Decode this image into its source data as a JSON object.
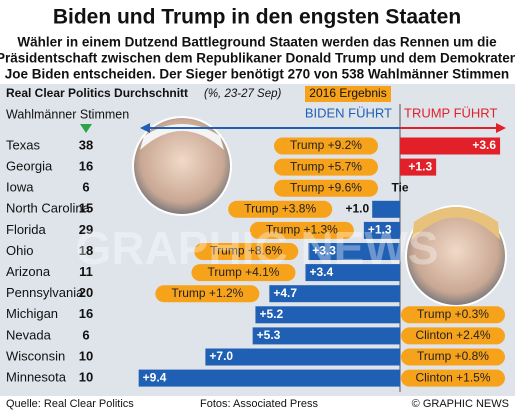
{
  "title": "Biden und Trump in den engsten Staaten",
  "subtitle": [
    "Wähler in einem Dutzend Battleground Staaten werden das Rennen um die",
    "Präsidentschaft zwischen dem Republikaner Donald Trump und dem Demokraten",
    "Joe Biden entscheiden. Der Sieger benötigt 270 von 538 Wahlmänner Stimmen"
  ],
  "poll_label": "Real Clear Politics Durchschnitt",
  "poll_note": "(%, 23-27 Sep)",
  "result_header": "2016 Ergebnis",
  "votes_header": "Wahlmänner Stimmen",
  "watermark": "GRAPHIC NEWS",
  "footer": {
    "source": "Quelle: Real Clear Politics",
    "photos": "Fotos: Associated Press",
    "copyright": "© GRAPHIC NEWS"
  },
  "chart_data": {
    "type": "diverging_bar",
    "categories": [
      "Texas",
      "Georgia",
      "Iowa",
      "North Carolina",
      "Florida",
      "Ohio",
      "Arizona",
      "Pennsylvania",
      "Michigan",
      "Nevada",
      "Wisconsin",
      "Minnesota"
    ],
    "electoral_votes": [
      38,
      16,
      6,
      15,
      29,
      18,
      11,
      20,
      16,
      6,
      10,
      10
    ],
    "series": [
      {
        "name": "BIDEN FÜHRT",
        "color": "#1f5fb4",
        "side": "left",
        "values": [
          null,
          null,
          0,
          1.0,
          1.3,
          3.3,
          3.4,
          4.7,
          5.2,
          5.3,
          7.0,
          9.4
        ],
        "value_labels": [
          null,
          null,
          "Tie",
          "+1.0",
          "+1.3",
          "+3.3",
          "+3.4",
          "+4.7",
          "+5.2",
          "+5.3",
          "+7.0",
          "+9.4"
        ]
      },
      {
        "name": "TRUMP FÜHRT",
        "color": "#e2202a",
        "side": "right",
        "values": [
          3.6,
          1.3,
          null,
          null,
          null,
          null,
          null,
          null,
          null,
          null,
          null,
          null
        ],
        "value_labels": [
          "+3.6",
          "+1.3",
          null,
          null,
          null,
          null,
          null,
          null,
          null,
          null,
          null,
          null
        ]
      }
    ],
    "result_2016": [
      "Trump +9.2%",
      "Trump +5.7%",
      "Trump +9.6%",
      "Trump +3.8%",
      "Trump +1.3%",
      "Trump +8.6%",
      "Trump +4.1%",
      "Trump +1.2%",
      "Trump +0.3%",
      "Clinton +2.4%",
      "Trump +0.8%",
      "Clinton +1.5%"
    ],
    "result_color": "#f7a21b"
  }
}
